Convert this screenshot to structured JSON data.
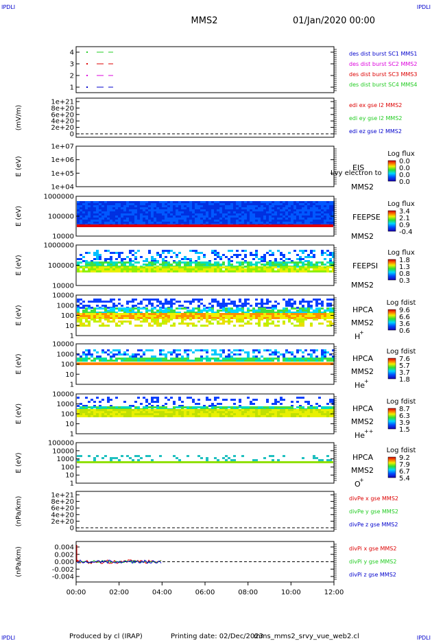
{
  "corner": {
    "tl": "IPDLI",
    "tr": "IPDLI",
    "bl": "IPDLI",
    "br": "IPDLI"
  },
  "header": {
    "title": "MMS2",
    "date": "01/Jan/2020 00:00"
  },
  "footer": {
    "produced": "Produced by cl (IRAP)",
    "printing": "Printing date: 02/Dec/2023",
    "file": "mms_mms2_srvy_vue_web2.cl"
  },
  "colors": {
    "red": "#dd0000",
    "green": "#22cc22",
    "blue": "#0000cc",
    "magenta": "#dd00dd",
    "black": "#000000"
  },
  "chart_data": [
    {
      "type": "line",
      "id": "dist_burst",
      "ylabel": "",
      "yticks": [
        "4",
        "3",
        "2",
        "1"
      ],
      "legend": [
        {
          "text": "des dist burst SC1 MMS1",
          "color": "#0000cc"
        },
        {
          "text": "des dist burst SC2 MMS2",
          "color": "#dd00dd"
        },
        {
          "text": "des dist burst SC3 MMS3",
          "color": "#dd0000"
        },
        {
          "text": "des dist burst SC4 MMS4",
          "color": "#22cc22"
        }
      ]
    },
    {
      "type": "line",
      "id": "edi",
      "ylabel": "(mV/m)",
      "yticks": [
        "1e+21",
        "8e+20",
        "6e+20",
        "4e+20",
        "2e+20",
        "0"
      ],
      "legend": [
        {
          "text": "edi ex gse l2 MMS2",
          "color": "#dd0000"
        },
        {
          "text": "edi ey gse l2 MMS2",
          "color": "#22cc22"
        },
        {
          "text": "edi ez gse l2 MMS2",
          "color": "#0000cc"
        }
      ]
    },
    {
      "type": "heatmap",
      "id": "eis",
      "ylabel": "E (eV)",
      "yticks": [
        "1e+07",
        "1e+06",
        "1e+05",
        "1e+04"
      ],
      "inst": "EIS",
      "inst2": "MMS2",
      "note": "Lvy electron to",
      "cb_title": "Log flux",
      "cb_ticks": [
        "0.0",
        "0.0",
        "0.0",
        "0.0"
      ]
    },
    {
      "type": "heatmap",
      "id": "feeps_e",
      "ylabel": "E (eV)",
      "yticks": [
        "1000000",
        "100000",
        "10000"
      ],
      "inst": "FEEPSE",
      "inst2": "MMS2",
      "cb_title": "Log flux",
      "cb_ticks": [
        "3.4",
        "2.1",
        "0.9",
        "-0.4"
      ]
    },
    {
      "type": "heatmap",
      "id": "feeps_i",
      "ylabel": "E (eV)",
      "yticks": [
        "1000000",
        "100000",
        "10000"
      ],
      "inst": "FEEPSI",
      "inst2": "MMS2",
      "cb_title": "Log flux",
      "cb_ticks": [
        "1.8",
        "1.3",
        "0.8",
        "0.3"
      ]
    },
    {
      "type": "heatmap",
      "id": "hpca_h",
      "ylabel": "E (eV)",
      "yticks": [
        "10000",
        "1000",
        "100",
        "10",
        "1"
      ],
      "inst": "HPCA",
      "inst2": "MMS2",
      "species": "H",
      "sup": "+",
      "cb_title": "Log fdist",
      "cb_ticks": [
        "9.6",
        "6.6",
        "3.6",
        "0.6"
      ]
    },
    {
      "type": "heatmap",
      "id": "hpca_he",
      "ylabel": "E (eV)",
      "yticks": [
        "10000",
        "1000",
        "100",
        "10",
        "1"
      ],
      "inst": "HPCA",
      "inst2": "MMS2",
      "species": "He",
      "sup": "+",
      "cb_title": "Log fdist",
      "cb_ticks": [
        "7.6",
        "5.7",
        "3.7",
        "1.8"
      ]
    },
    {
      "type": "heatmap",
      "id": "hpca_hepp",
      "ylabel": "E (eV)",
      "yticks": [
        "10000",
        "1000",
        "100",
        "10",
        "1"
      ],
      "inst": "HPCA",
      "inst2": "MMS2",
      "species": "He",
      "sup": "++",
      "cb_title": "Log fdist",
      "cb_ticks": [
        "8.7",
        "6.3",
        "3.9",
        "1.5"
      ]
    },
    {
      "type": "heatmap",
      "id": "hpca_o",
      "ylabel": "E (eV)",
      "yticks": [
        "100000",
        "10000",
        "1000",
        "100",
        "10",
        "1"
      ],
      "inst": "HPCA",
      "inst2": "MMS2",
      "species": "O",
      "sup": "+",
      "cb_title": "Log fdist",
      "cb_ticks": [
        "9.2",
        "7.9",
        "6.7",
        "5.4"
      ]
    },
    {
      "type": "line",
      "id": "divpe",
      "ylabel": "(nPa/km)",
      "yticks": [
        "1e+21",
        "8e+20",
        "6e+20",
        "4e+20",
        "2e+20",
        "0"
      ],
      "legend": [
        {
          "text": "divPe x gse MMS2",
          "color": "#dd0000"
        },
        {
          "text": "divPe y gse MMS2",
          "color": "#22cc22"
        },
        {
          "text": "divPe z gse MMS2",
          "color": "#0000cc"
        }
      ]
    },
    {
      "type": "line",
      "id": "divpi",
      "ylabel": "(nPa/km)",
      "yticks": [
        "0.004",
        "0.002",
        "0.000",
        "-0.002",
        "-0.004"
      ],
      "legend": [
        {
          "text": "divPi x gse MMS2",
          "color": "#dd0000"
        },
        {
          "text": "divPi y gse MMS2",
          "color": "#22cc22"
        },
        {
          "text": "divPi z gse MMS2",
          "color": "#0000cc"
        }
      ]
    }
  ],
  "xaxis": {
    "ticks": [
      "00:00",
      "02:00",
      "04:00",
      "06:00",
      "08:00",
      "10:00",
      "12:00"
    ]
  }
}
